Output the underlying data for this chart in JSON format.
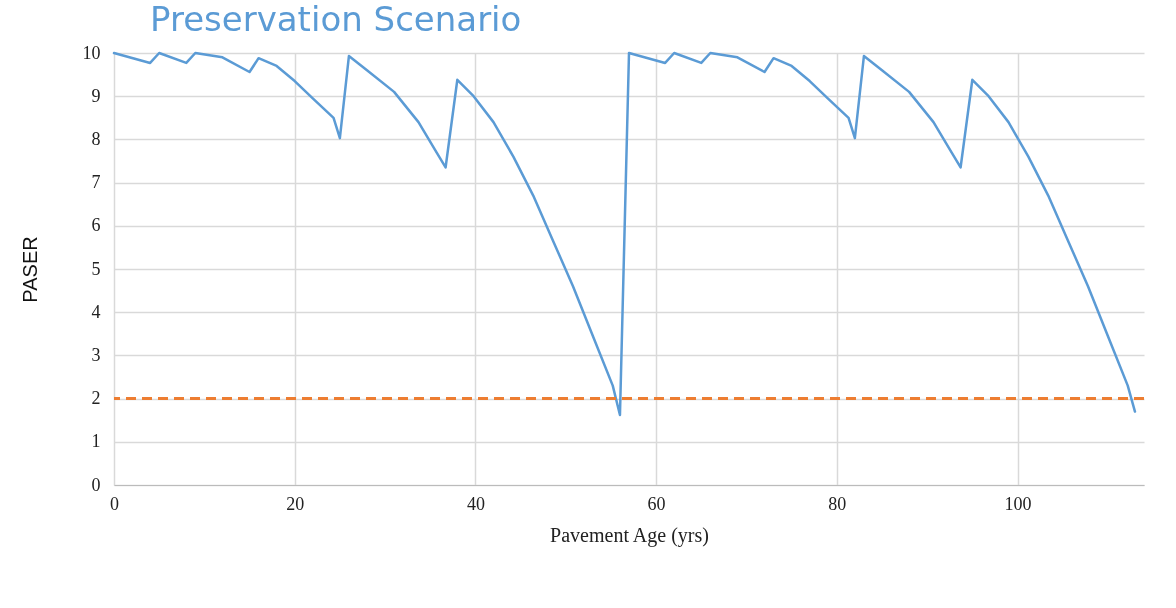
{
  "chart_data": {
    "type": "line",
    "title": "Preservation Scenario",
    "xlabel": "Pavement Age (yrs)",
    "ylabel": "PASER",
    "xlim": [
      0,
      114
    ],
    "xticks": [
      0,
      20,
      40,
      60,
      80,
      100
    ],
    "ylim": [
      0,
      10
    ],
    "yticks": [
      0,
      1,
      2,
      3,
      4,
      5,
      6,
      7,
      8,
      9,
      10
    ],
    "grid": true,
    "line_style": "solid",
    "series": [
      {
        "color": "#5b9bd5",
        "x": [
          0,
          4,
          5,
          8,
          9,
          12,
          15,
          16,
          18,
          20,
          22,
          24.3,
          25,
          26,
          28,
          31,
          33.7,
          35.7,
          36.7,
          38,
          39.8,
          42,
          44.2,
          46.4,
          48.6,
          50.8,
          53,
          55.2,
          56,
          57,
          61,
          62,
          65,
          66,
          69,
          72,
          73,
          75,
          77,
          79,
          81.3,
          82,
          83,
          85,
          88,
          90.7,
          92.7,
          93.7,
          95,
          96.8,
          99,
          101.2,
          103.4,
          105.6,
          107.8,
          110,
          112.2,
          113
        ],
        "values": [
          10,
          9.77,
          10,
          9.77,
          10,
          9.9,
          9.56,
          9.88,
          9.7,
          9.35,
          8.95,
          8.5,
          8.03,
          9.93,
          9.6,
          9.1,
          8.4,
          7.7,
          7.35,
          9.38,
          9.0,
          8.4,
          7.6,
          6.7,
          5.65,
          4.6,
          3.45,
          2.3,
          1.62,
          10,
          9.77,
          10,
          9.77,
          10,
          9.9,
          9.56,
          9.88,
          9.7,
          9.35,
          8.95,
          8.5,
          8.03,
          9.93,
          9.6,
          9.1,
          8.4,
          7.7,
          7.35,
          9.38,
          9.0,
          8.4,
          7.6,
          6.7,
          5.65,
          4.6,
          3.45,
          2.3,
          1.7
        ]
      }
    ],
    "ref_lines": [
      {
        "axis": "y",
        "value": 2,
        "color": "#ed7d31",
        "line_style": "dashed"
      }
    ]
  }
}
